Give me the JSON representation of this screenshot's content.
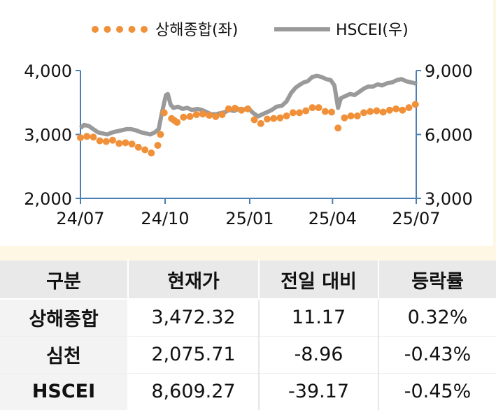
{
  "chart_data": {
    "type": "line",
    "title": "",
    "legend": {
      "placement": "top",
      "entries": [
        "상해종합(좌)",
        "HSCEI(우)"
      ]
    },
    "x_ticks": [
      "24/07",
      "24/10",
      "25/01",
      "25/04",
      "25/07"
    ],
    "x_range": [
      "2024-07-01",
      "2025-07-01"
    ],
    "y_left": {
      "ticks": [
        "4,000",
        "3,000",
        "2,000"
      ],
      "range": [
        2000,
        4000
      ]
    },
    "y_right": {
      "ticks": [
        "9,000",
        "6,000",
        "3,000"
      ],
      "range": [
        3000,
        9000
      ]
    },
    "grid": false,
    "series": [
      {
        "name": "상해종합(좌)",
        "axis": "left",
        "style": "dotted",
        "color": "#f0913a",
        "x": [
          "2024-07-01",
          "2024-07-08",
          "2024-07-15",
          "2024-07-22",
          "2024-07-29",
          "2024-08-05",
          "2024-08-12",
          "2024-08-19",
          "2024-08-26",
          "2024-09-02",
          "2024-09-09",
          "2024-09-16",
          "2024-09-23",
          "2024-09-26",
          "2024-09-30",
          "2024-10-08",
          "2024-10-11",
          "2024-10-14",
          "2024-10-21",
          "2024-10-28",
          "2024-11-04",
          "2024-11-11",
          "2024-11-18",
          "2024-11-25",
          "2024-12-02",
          "2024-12-09",
          "2024-12-16",
          "2024-12-23",
          "2024-12-30",
          "2025-01-06",
          "2025-01-13",
          "2025-01-20",
          "2025-01-27",
          "2025-02-03",
          "2025-02-10",
          "2025-02-17",
          "2025-02-24",
          "2025-03-03",
          "2025-03-10",
          "2025-03-17",
          "2025-03-24",
          "2025-03-31",
          "2025-04-07",
          "2025-04-14",
          "2025-04-21",
          "2025-04-28",
          "2025-05-05",
          "2025-05-12",
          "2025-05-19",
          "2025-05-26",
          "2025-06-02",
          "2025-06-09",
          "2025-06-16",
          "2025-06-23",
          "2025-06-30"
        ],
        "values": [
          2950,
          2970,
          2960,
          2900,
          2890,
          2910,
          2860,
          2870,
          2850,
          2800,
          2760,
          2710,
          2830,
          3000,
          3340,
          3250,
          3220,
          3190,
          3270,
          3280,
          3310,
          3320,
          3300,
          3280,
          3310,
          3400,
          3410,
          3380,
          3400,
          3230,
          3170,
          3240,
          3250,
          3260,
          3290,
          3340,
          3340,
          3370,
          3420,
          3420,
          3360,
          3350,
          3100,
          3260,
          3290,
          3290,
          3340,
          3360,
          3370,
          3350,
          3380,
          3400,
          3380,
          3420,
          3470
        ]
      },
      {
        "name": "HSCEI(우)",
        "axis": "right",
        "style": "solid",
        "color": "#9a9a9a",
        "x": [
          "2024-07-01",
          "2024-07-05",
          "2024-07-10",
          "2024-07-15",
          "2024-07-20",
          "2024-07-25",
          "2024-07-30",
          "2024-08-05",
          "2024-08-10",
          "2024-08-15",
          "2024-08-20",
          "2024-08-25",
          "2024-08-30",
          "2024-09-05",
          "2024-09-10",
          "2024-09-15",
          "2024-09-20",
          "2024-09-24",
          "2024-09-27",
          "2024-09-30",
          "2024-10-02",
          "2024-10-04",
          "2024-10-07",
          "2024-10-10",
          "2024-10-15",
          "2024-10-20",
          "2024-10-25",
          "2024-10-30",
          "2024-11-05",
          "2024-11-10",
          "2024-11-15",
          "2024-11-20",
          "2024-11-25",
          "2024-11-30",
          "2024-12-05",
          "2024-12-10",
          "2024-12-15",
          "2024-12-20",
          "2024-12-25",
          "2024-12-30",
          "2025-01-05",
          "2025-01-10",
          "2025-01-15",
          "2025-01-20",
          "2025-01-25",
          "2025-01-30",
          "2025-02-05",
          "2025-02-10",
          "2025-02-15",
          "2025-02-20",
          "2025-02-25",
          "2025-03-01",
          "2025-03-05",
          "2025-03-10",
          "2025-03-15",
          "2025-03-20",
          "2025-03-25",
          "2025-03-30",
          "2025-04-03",
          "2025-04-07",
          "2025-04-10",
          "2025-04-15",
          "2025-04-20",
          "2025-04-25",
          "2025-04-30",
          "2025-05-05",
          "2025-05-10",
          "2025-05-15",
          "2025-05-20",
          "2025-05-25",
          "2025-05-30",
          "2025-06-05",
          "2025-06-10",
          "2025-06-15",
          "2025-06-20",
          "2025-06-25",
          "2025-06-30",
          "2025-07-01"
        ],
        "values": [
          6300,
          6450,
          6400,
          6250,
          6100,
          6050,
          6000,
          6100,
          6150,
          6200,
          6250,
          6250,
          6200,
          6100,
          6050,
          6000,
          6100,
          6250,
          6900,
          7500,
          7850,
          7900,
          7400,
          7250,
          7300,
          7200,
          7250,
          7150,
          7200,
          7150,
          7050,
          6950,
          6950,
          7000,
          7050,
          7150,
          7100,
          7200,
          7150,
          7250,
          7000,
          6850,
          6950,
          7050,
          7150,
          7300,
          7350,
          7550,
          7950,
          8200,
          8350,
          8450,
          8500,
          8700,
          8750,
          8700,
          8600,
          8550,
          8300,
          7250,
          7700,
          7800,
          7900,
          7850,
          8000,
          8150,
          8250,
          8250,
          8350,
          8300,
          8400,
          8450,
          8550,
          8600,
          8500,
          8450,
          8400,
          8350
        ]
      }
    ]
  },
  "table": {
    "headers": [
      "구분",
      "현재가",
      "전일 대비",
      "등락률"
    ],
    "rows": [
      {
        "name": "상해종합",
        "price": "3,472.32",
        "change": "11.17",
        "rate": "0.32%"
      },
      {
        "name": "심천",
        "price": "2,075.71",
        "change": "-8.96",
        "rate": "-0.43%"
      },
      {
        "name": "HSCEI",
        "price": "8,609.27",
        "change": "-39.17",
        "rate": "-0.45%"
      }
    ]
  }
}
